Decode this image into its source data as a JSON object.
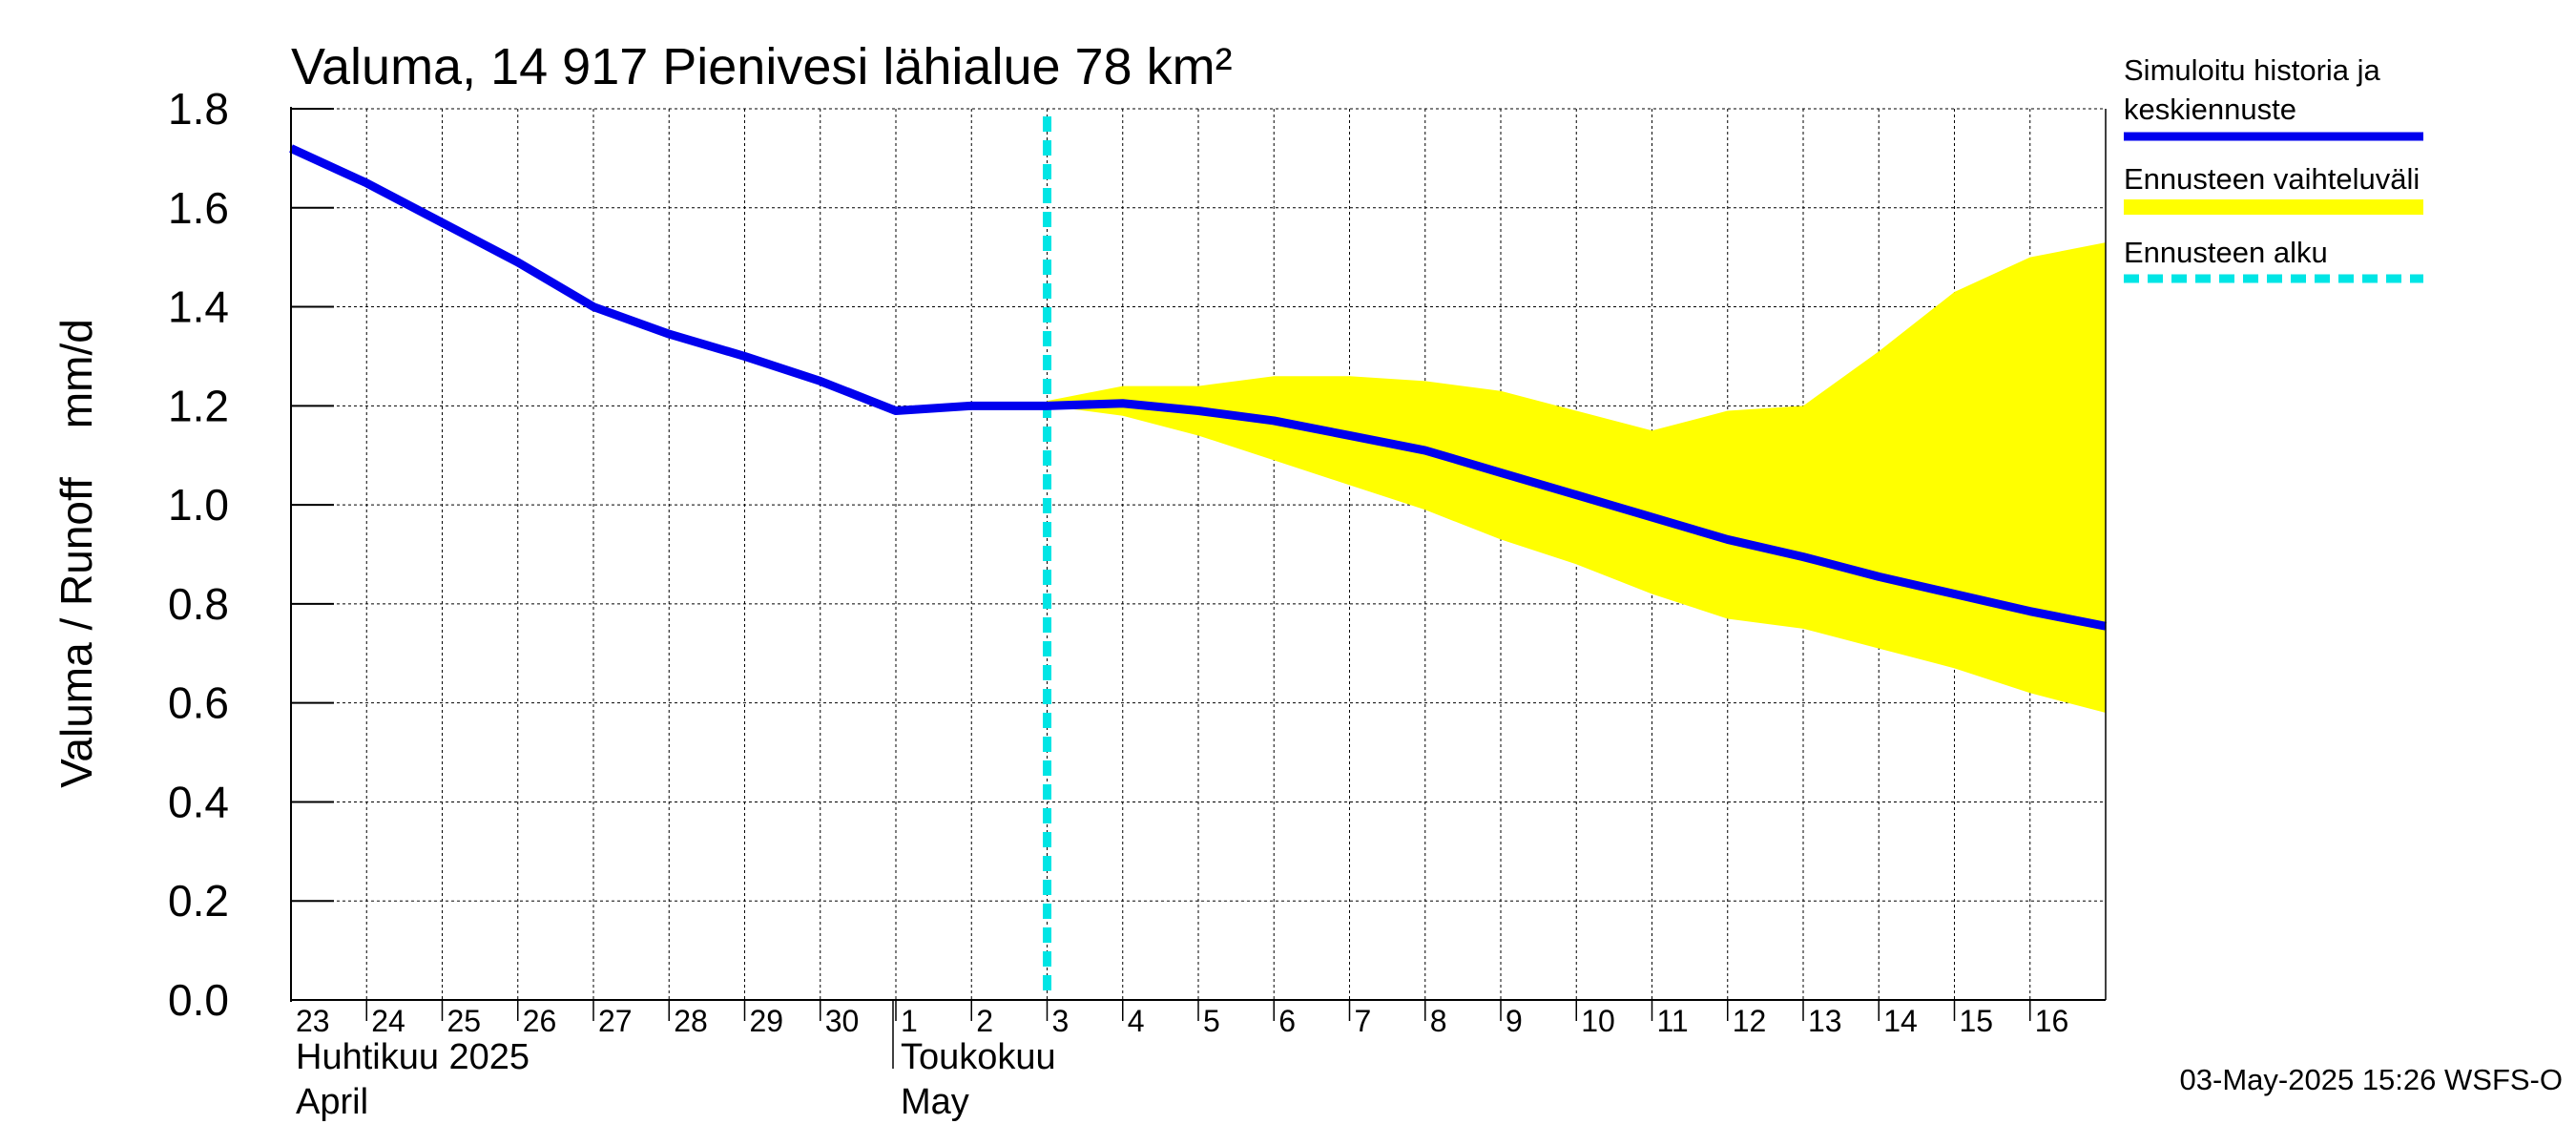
{
  "chart_data": {
    "type": "line",
    "title": "Valuma, 14 917 Pienivesi lähialue 78 km²",
    "ylabel": "Valuma / Runoff    mm/d",
    "ylim": [
      0.0,
      1.8
    ],
    "yticks": [
      "0.0",
      "0.2",
      "0.4",
      "0.6",
      "0.8",
      "1.0",
      "1.2",
      "1.4",
      "1.6",
      "1.8"
    ],
    "x_start_day_offset": 0,
    "x_end_day_offset": 24,
    "day_labels": [
      "23",
      "24",
      "25",
      "26",
      "27",
      "28",
      "29",
      "30",
      "1",
      "2",
      "3",
      "4",
      "5",
      "6",
      "7",
      "8",
      "9",
      "10",
      "11",
      "12",
      "13",
      "14",
      "15",
      "16"
    ],
    "month_labels": [
      {
        "line1": "Huhtikuu  2025",
        "line2": "April",
        "day_offset": 0
      },
      {
        "line1": "Toukokuu",
        "line2": "May",
        "day_offset": 8
      }
    ],
    "month_boundary_day_offset": 8,
    "forecast_start_day_offset": 10.0,
    "series": [
      {
        "name": "Simuloitu historia ja keskiennuste",
        "color": "#0000ee",
        "x": [
          0,
          1,
          2,
          3,
          4,
          5,
          6,
          7,
          8,
          9,
          10,
          11,
          12,
          13,
          14,
          15,
          16,
          17,
          18,
          19,
          20,
          21,
          22,
          23,
          24
        ],
        "values": [
          1.72,
          1.65,
          1.57,
          1.49,
          1.4,
          1.345,
          1.3,
          1.25,
          1.19,
          1.2,
          1.2,
          1.205,
          1.19,
          1.17,
          1.14,
          1.11,
          1.065,
          1.02,
          0.975,
          0.93,
          0.895,
          0.855,
          0.82,
          0.785,
          0.755
        ]
      }
    ],
    "band": {
      "name": "Ennusteen vaihteluväli",
      "color": "#ffff00",
      "x": [
        10,
        11,
        12,
        13,
        14,
        15,
        16,
        17,
        18,
        19,
        20,
        21,
        22,
        23,
        24
      ],
      "upper": [
        1.21,
        1.24,
        1.24,
        1.26,
        1.26,
        1.25,
        1.23,
        1.19,
        1.15,
        1.19,
        1.2,
        1.31,
        1.43,
        1.5,
        1.53
      ],
      "lower": [
        1.2,
        1.18,
        1.14,
        1.09,
        1.04,
        0.99,
        0.93,
        0.88,
        0.82,
        0.77,
        0.75,
        0.71,
        0.67,
        0.62,
        0.58
      ]
    },
    "legend": [
      {
        "label_line1": "Simuloitu historia ja",
        "label_line2": "keskiennuste",
        "style": "line",
        "color": "#0000ee"
      },
      {
        "label_line1": "Ennusteen vaihteluväli",
        "label_line2": "",
        "style": "band",
        "color": "#ffff00"
      },
      {
        "label_line1": "Ennusteen alku",
        "label_line2": "",
        "style": "dashed",
        "color": "#00e5e5"
      }
    ],
    "forecast_line_color": "#00e5e5",
    "footer": "03-May-2025 15:26 WSFS-O"
  }
}
